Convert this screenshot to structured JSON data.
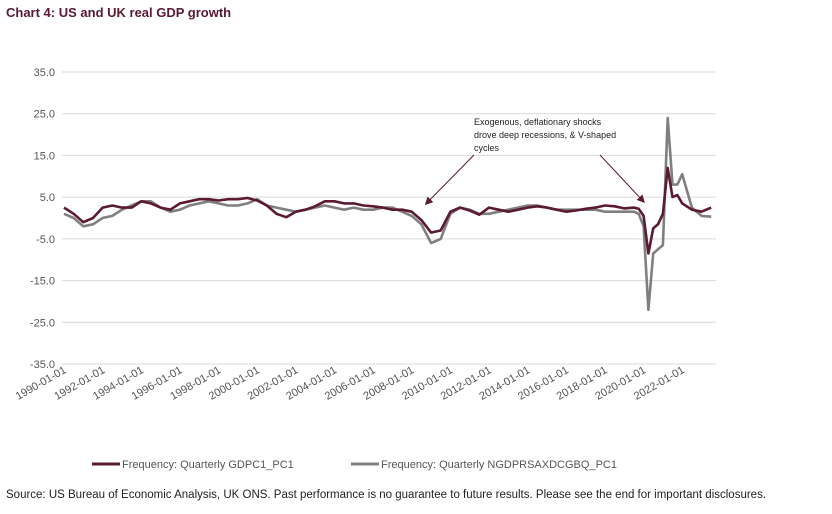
{
  "chart_data": {
    "type": "line",
    "title": "Chart 4: US and UK real GDP growth",
    "xlabel": "",
    "ylabel": "",
    "ylim": [
      -35,
      35
    ],
    "yticks": [
      "35.0",
      "25.0",
      "15.0",
      "5.0",
      "-5.0",
      "-15.0",
      "-25.0",
      "-35.0"
    ],
    "xticks": [
      "1990-01-01",
      "1992-01-01",
      "1994-01-01",
      "1996-01-01",
      "1998-01-01",
      "2000-01-01",
      "2002-01-01",
      "2004-01-01",
      "2006-01-01",
      "2008-01-01",
      "2010-01-01",
      "2012-01-01",
      "2014-01-01",
      "2016-01-01",
      "2018-01-01",
      "2020-01-01",
      "2022-01-01"
    ],
    "xlim": [
      1990.0,
      2023.75
    ],
    "grid": true,
    "legend_position": "bottom",
    "annotation": {
      "lines": [
        "Exogenous, deflationary shocks",
        "drove deep recessions, & V-shaped",
        "cycles"
      ],
      "arrow_targets": [
        [
          2008.75,
          2.0
        ],
        [
          2020.0,
          2.5
        ]
      ]
    },
    "series": [
      {
        "name": "Frequency: Quarterly GDPC1_PC1",
        "color": "#5b1a2f",
        "x": [
          1990.0,
          1990.5,
          1991.0,
          1991.5,
          1992.0,
          1992.5,
          1993.0,
          1993.5,
          1994.0,
          1994.5,
          1995.0,
          1995.5,
          1996.0,
          1996.5,
          1997.0,
          1997.5,
          1998.0,
          1998.5,
          1999.0,
          1999.5,
          2000.0,
          2000.5,
          2001.0,
          2001.5,
          2002.0,
          2002.5,
          2003.0,
          2003.5,
          2004.0,
          2004.5,
          2005.0,
          2005.5,
          2006.0,
          2006.5,
          2007.0,
          2007.5,
          2008.0,
          2008.5,
          2009.0,
          2009.5,
          2010.0,
          2010.5,
          2011.0,
          2011.5,
          2012.0,
          2012.5,
          2013.0,
          2013.5,
          2014.0,
          2014.5,
          2015.0,
          2015.5,
          2016.0,
          2016.5,
          2017.0,
          2017.5,
          2018.0,
          2018.5,
          2019.0,
          2019.5,
          2019.75,
          2020.0,
          2020.25,
          2020.5,
          2020.75,
          2021.0,
          2021.25,
          2021.5,
          2021.75,
          2022.0,
          2022.5,
          2023.0,
          2023.5
        ],
        "values": [
          2.5,
          1.0,
          -1.0,
          0.0,
          2.5,
          3.0,
          2.5,
          2.5,
          4.0,
          3.5,
          2.5,
          2.0,
          3.5,
          4.0,
          4.5,
          4.5,
          4.2,
          4.5,
          4.5,
          4.8,
          4.2,
          3.0,
          1.0,
          0.2,
          1.5,
          2.0,
          2.8,
          4.0,
          4.0,
          3.5,
          3.5,
          3.0,
          2.8,
          2.5,
          2.0,
          2.0,
          1.5,
          -0.5,
          -3.5,
          -3.0,
          1.5,
          2.5,
          1.8,
          0.8,
          2.5,
          2.0,
          1.5,
          2.0,
          2.5,
          2.8,
          2.5,
          2.0,
          1.5,
          1.8,
          2.2,
          2.5,
          3.0,
          2.8,
          2.3,
          2.5,
          2.2,
          0.5,
          -8.5,
          -2.5,
          -1.5,
          1.0,
          12.0,
          5.0,
          5.5,
          3.5,
          2.0,
          1.5,
          2.5
        ]
      },
      {
        "name": "Frequency: Quarterly NGDPRSAXDCGBQ_PC1",
        "color": "#7f7f7f",
        "x": [
          1990.0,
          1990.5,
          1991.0,
          1991.5,
          1992.0,
          1992.5,
          1993.0,
          1993.5,
          1994.0,
          1994.5,
          1995.0,
          1995.5,
          1996.0,
          1996.5,
          1997.0,
          1997.5,
          1998.0,
          1998.5,
          1999.0,
          1999.5,
          2000.0,
          2000.5,
          2001.0,
          2001.5,
          2002.0,
          2002.5,
          2003.0,
          2003.5,
          2004.0,
          2004.5,
          2005.0,
          2005.5,
          2006.0,
          2006.5,
          2007.0,
          2007.5,
          2008.0,
          2008.5,
          2009.0,
          2009.5,
          2010.0,
          2010.5,
          2011.0,
          2011.5,
          2012.0,
          2012.5,
          2013.0,
          2013.5,
          2014.0,
          2014.5,
          2015.0,
          2015.5,
          2016.0,
          2016.5,
          2017.0,
          2017.5,
          2018.0,
          2018.5,
          2019.0,
          2019.5,
          2019.75,
          2020.0,
          2020.25,
          2020.5,
          2020.75,
          2021.0,
          2021.25,
          2021.5,
          2021.75,
          2022.0,
          2022.5,
          2023.0,
          2023.5
        ],
        "values": [
          1.0,
          0.0,
          -2.0,
          -1.5,
          0.0,
          0.5,
          2.0,
          3.0,
          4.0,
          4.0,
          2.5,
          1.5,
          2.0,
          3.0,
          3.5,
          4.0,
          3.5,
          3.0,
          3.0,
          3.5,
          4.5,
          3.0,
          2.5,
          2.0,
          1.5,
          2.0,
          2.5,
          3.0,
          2.5,
          2.0,
          2.5,
          2.0,
          2.0,
          2.5,
          2.5,
          1.5,
          0.5,
          -1.5,
          -6.0,
          -5.0,
          1.0,
          2.5,
          2.0,
          1.0,
          1.0,
          1.5,
          2.0,
          2.5,
          3.0,
          3.0,
          2.5,
          2.0,
          2.0,
          2.0,
          2.0,
          2.0,
          1.5,
          1.5,
          1.5,
          1.5,
          1.0,
          -2.0,
          -22.0,
          -8.5,
          -7.5,
          -6.5,
          24.0,
          8.0,
          8.0,
          10.5,
          2.5,
          0.5,
          0.3
        ]
      }
    ]
  },
  "source_text": "Source: US Bureau of Economic Analysis, UK ONS. Past performance is no guarantee to future results. Please see the end for important disclosures."
}
